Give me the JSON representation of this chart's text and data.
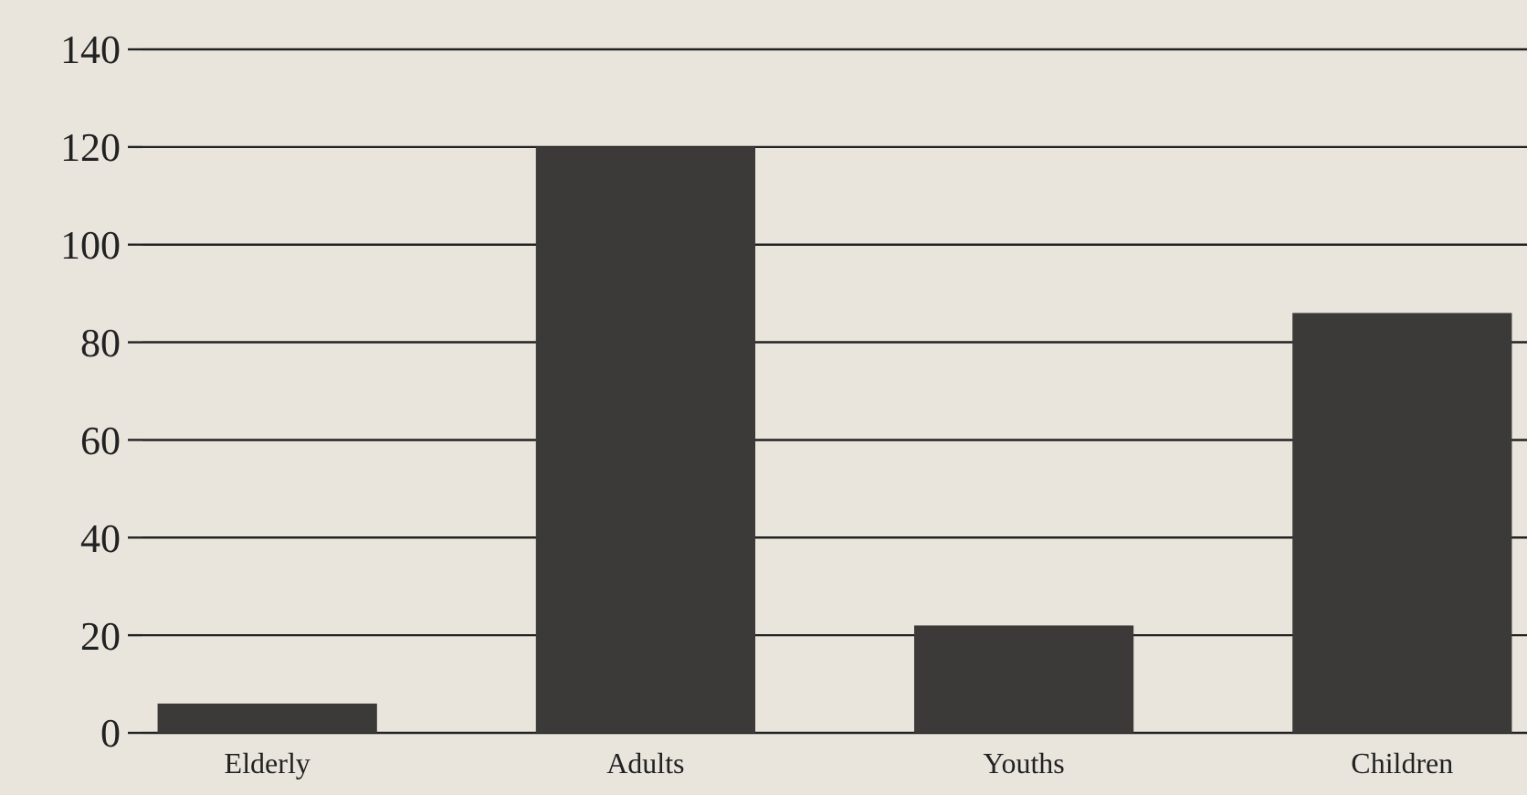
{
  "chart_data": {
    "type": "bar",
    "categories": [
      "Elderly",
      "Adults",
      "Youths",
      "Children"
    ],
    "values": [
      6,
      120,
      22,
      86
    ],
    "color": "#3b3a38",
    "ylim": [
      0,
      140
    ],
    "yticks": [
      0,
      20,
      40,
      60,
      80,
      100,
      120,
      140
    ],
    "grid": "y"
  }
}
